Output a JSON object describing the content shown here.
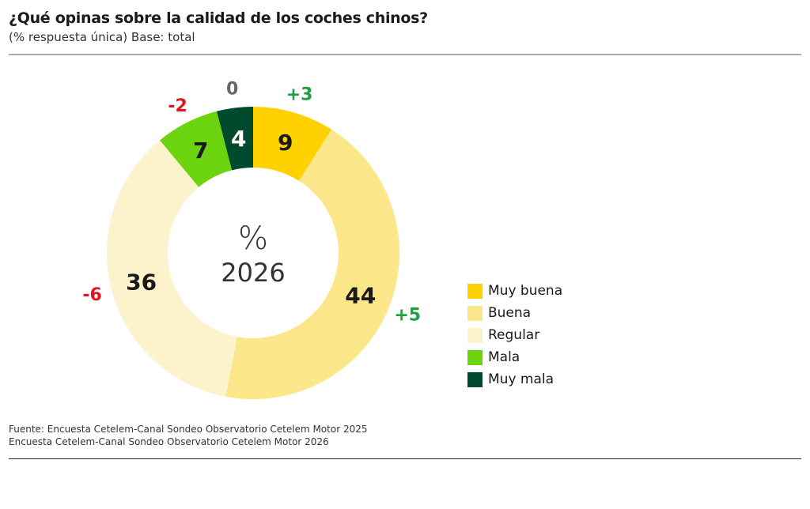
{
  "header": {
    "title": "¿Qué opinas sobre la calidad de los coches chinos?",
    "subtitle": "(% respuesta única) Base: total"
  },
  "chart_data": {
    "type": "pie",
    "variant": "donut",
    "center_label": {
      "unit": "%",
      "year": "2026"
    },
    "categories": [
      "Muy buena",
      "Buena",
      "Regular",
      "Mala",
      "Muy mala"
    ],
    "values": [
      9,
      44,
      36,
      7,
      4
    ],
    "changes": [
      "+3",
      "+5",
      "-6",
      "-2",
      "0"
    ],
    "colors": [
      "#FFD100",
      "#FBE68A",
      "#FCF3CC",
      "#6BD40F",
      "#004A2E"
    ],
    "label_colors": [
      "#1a1a1a",
      "#1a1a1a",
      "#1a1a1a",
      "#1a1a1a",
      "#ffffff"
    ],
    "change_colors": {
      "positive": "#1E9E3E",
      "negative": "#E0151E",
      "zero": "#666666"
    },
    "legend": "right"
  },
  "footer": {
    "source_line1": "Fuente: Encuesta Cetelem-Canal Sondeo Observatorio Cetelem Motor 2025",
    "source_line2": "Encuesta Cetelem-Canal Sondeo Observatorio Cetelem Motor 2026"
  }
}
